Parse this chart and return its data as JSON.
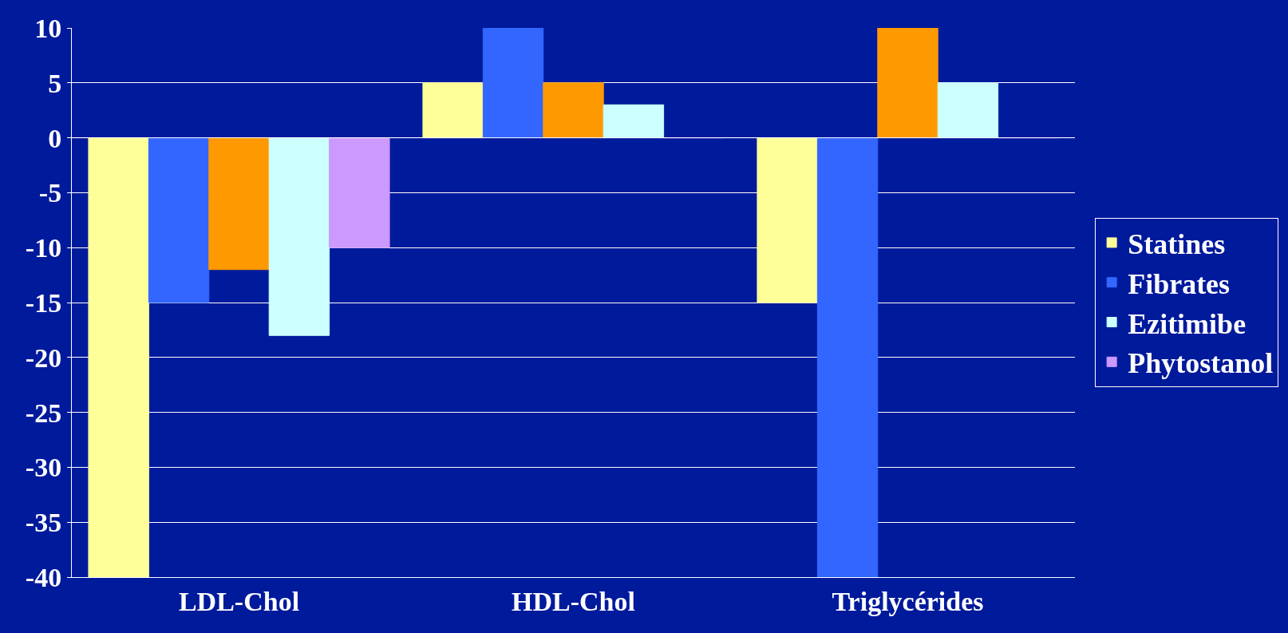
{
  "chart_data": {
    "type": "bar",
    "categories": [
      "LDL-Chol",
      "HDL-Chol",
      "Triglycérides"
    ],
    "series": [
      {
        "name": "Statines",
        "color": "#ffff99",
        "values": [
          -40,
          5,
          -15
        ]
      },
      {
        "name": "Fibrates",
        "color": "#3366ff",
        "values": [
          -15,
          10,
          -40
        ]
      },
      {
        "color": "#ff9900",
        "values": [
          -12,
          5,
          10
        ]
      },
      {
        "name": "Ezitimibe",
        "color": "#ccffff",
        "values": [
          -18,
          3,
          5
        ]
      },
      {
        "name": "Phytostanol",
        "color": "#cc99ff",
        "values": [
          -10,
          0,
          0
        ]
      }
    ],
    "ylim": [
      -40,
      10
    ],
    "yticks": [
      -40,
      -35,
      -30,
      -25,
      -20,
      -15,
      -10,
      -5,
      0,
      5,
      10
    ],
    "grid": "y",
    "legend": "right"
  }
}
